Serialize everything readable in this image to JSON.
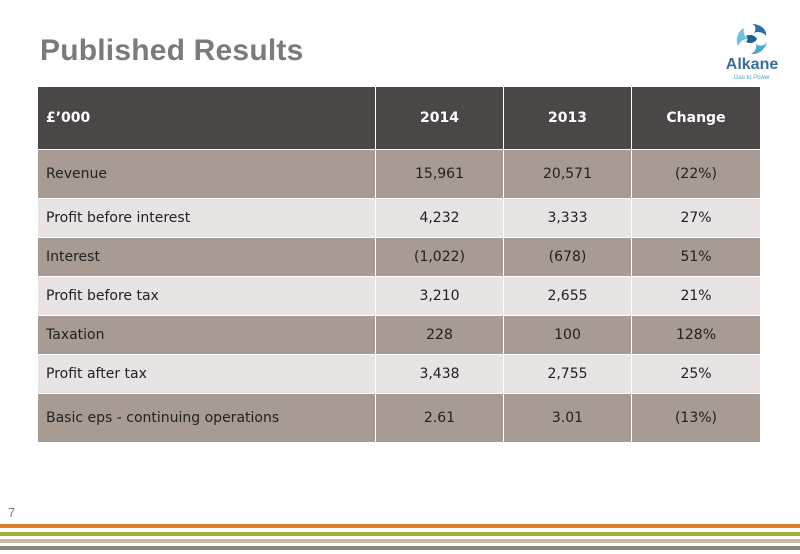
{
  "header": {
    "title": "Published Results"
  },
  "logo": {
    "brand": "Alkane",
    "tagline": "Gas to Power"
  },
  "table": {
    "columns": [
      "£’000",
      "2014",
      "2013",
      "Change"
    ],
    "rows": [
      {
        "label": "Revenue",
        "y2014": "15,961",
        "y2013": "20,571",
        "change": "(22%)"
      },
      {
        "label": "Profit before interest",
        "y2014": "4,232",
        "y2013": "3,333",
        "change": "27%"
      },
      {
        "label": "Interest",
        "y2014": "(1,022)",
        "y2013": "(678)",
        "change": "51%"
      },
      {
        "label": "Profit before tax",
        "y2014": "3,210",
        "y2013": "2,655",
        "change": "21%"
      },
      {
        "label": "Taxation",
        "y2014": "228",
        "y2013": "100",
        "change": "128%"
      },
      {
        "label": "Profit after tax",
        "y2014": "3,438",
        "y2013": "2,755",
        "change": "25%"
      },
      {
        "label": "Basic eps - continuing operations",
        "y2014": "2.61",
        "y2013": "3.01",
        "change": "(13%)"
      }
    ]
  },
  "footer": {
    "page_number": "7"
  },
  "colors": {
    "header_bg": "#4a4746",
    "row_dark": "#a79b93",
    "row_light": "#e8e4e3",
    "stripe_orange": "#e07f2e",
    "stripe_green": "#a3b32e",
    "stripe_tan": "#c8b9a8",
    "stripe_gray": "#8e8780"
  }
}
